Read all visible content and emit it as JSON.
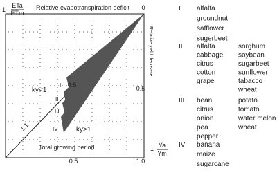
{
  "diagram": {
    "y_axis_prefix": "1-",
    "y_axis_numerator": "ETa",
    "y_axis_denominator": "ETm",
    "top_label": "Relative evapotranspiration deficit",
    "right_label": "Relative yield decrease",
    "x_axis_prefix": "1-",
    "x_axis_numerator": "Ya",
    "x_axis_denominator": "Ym",
    "top_ticks": [
      "0"
    ],
    "inner_tick": "0.5",
    "right_ticks": [
      "0.5",
      "1.0"
    ],
    "bottom_ticks": [
      "0.5"
    ],
    "line_label": "1:1",
    "region_low": "ky<1",
    "region_high": "ky>1",
    "period_label": "Total growing period",
    "wedge_labels": [
      "I",
      "II",
      "III",
      "IV"
    ],
    "groups": [
      {
        "numeral": "I",
        "col1": [
          "alfalfa",
          "groundnut",
          "safflower",
          "sugerbeet"
        ],
        "col2": []
      },
      {
        "numeral": "II",
        "col1": [
          "alfalfa",
          "cabbage",
          "citrus",
          "cotton",
          "grape"
        ],
        "col2": [
          "sorghum",
          "soybean",
          "sugarbeet",
          "sunflower",
          "tabacco",
          "wheat"
        ]
      },
      {
        "numeral": "III",
        "col1": [
          "bean",
          "citrus",
          "onion",
          "pea",
          "pepper"
        ],
        "col2": [
          "potato",
          "tomato",
          "water melon",
          "wheat"
        ]
      },
      {
        "numeral": "IV",
        "col1": [
          "banana",
          "maize",
          "sugarcane"
        ],
        "col2": []
      }
    ]
  }
}
